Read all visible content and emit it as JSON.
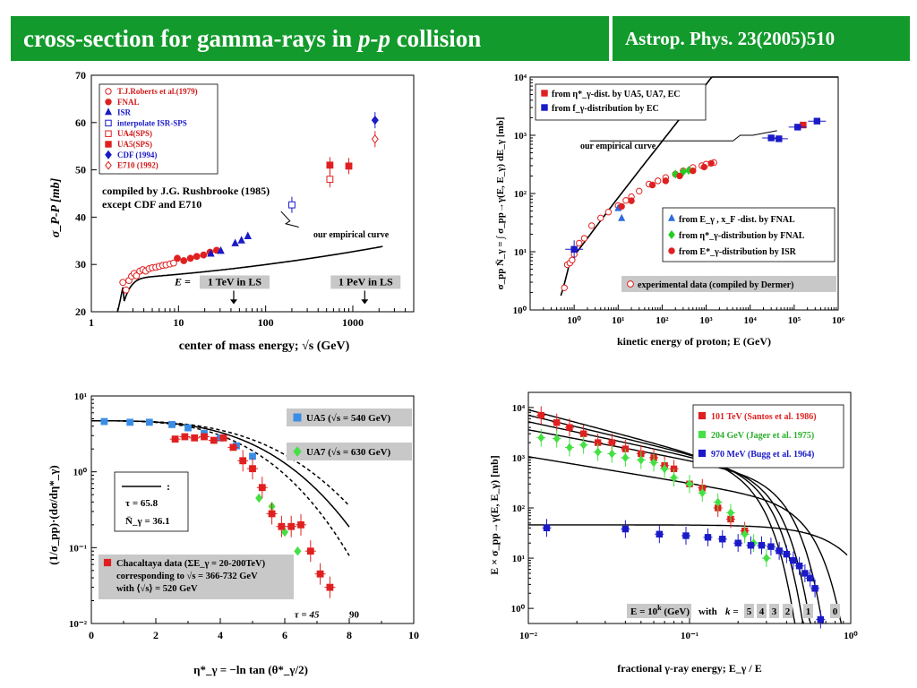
{
  "header": {
    "title_pre": "cross-section for gamma-rays in ",
    "title_em": "p-p",
    "title_post": " collision",
    "reference": "Astrop. Phys. 23(2005)510"
  },
  "chart_data": [
    {
      "type": "scatter",
      "id": "A",
      "xlabel": "center of mass energy;  √s (GeV)",
      "ylabel": "σ_P-P  [mb]",
      "xscale": "log",
      "xlim": [
        1,
        5000
      ],
      "ylim": [
        20,
        70
      ],
      "xticks": [
        "1",
        "10",
        "100",
        "1000"
      ],
      "yticks": [
        "20",
        "30",
        "40",
        "50",
        "60",
        "70"
      ],
      "legend": [
        "T.J.Roberts et al.(1979)",
        "FNAL",
        "ISR",
        "interpolate ISR-SPS",
        "UA4(SPS)",
        "UA5(SPS)",
        "CDF (1994)",
        "E710 (1992)"
      ],
      "note": [
        "compiled by J.G. Rushbrooke (1985)",
        "except CDF and E710"
      ],
      "curve_label": "our empirical curve",
      "arrow_labels": [
        {
          "pre": "E = ",
          "box": "1 TeV in LS",
          "x": 43
        },
        {
          "pre": "",
          "box": "1 PeV in LS",
          "x": 1370
        }
      ],
      "series": [
        {
          "name": "T.J.Roberts et al.(1979)",
          "color": "#e02020",
          "marker": "circle-open",
          "x": [
            2.3,
            2.5,
            2.7,
            2.9,
            3.1,
            3.3,
            3.6,
            3.9,
            4.2,
            4.6,
            5.0,
            5.5,
            6.0,
            6.6,
            7.2,
            8.0,
            8.8
          ],
          "y": [
            26.2,
            24.6,
            26.6,
            27.5,
            28.1,
            27.6,
            28.6,
            28.9,
            28.6,
            29.1,
            29.3,
            29.4,
            29.6,
            29.8,
            29.9,
            30.1,
            30.3
          ]
        },
        {
          "name": "FNAL",
          "color": "#e02020",
          "marker": "circle",
          "x": [
            9.7,
            11.5,
            13.7,
            16.2,
            19.4,
            23.0,
            27.4
          ],
          "y": [
            31.3,
            30.8,
            31.3,
            31.7,
            32.0,
            32.6,
            33.0
          ]
        },
        {
          "name": "ISR",
          "color": "#1a1ac8",
          "marker": "triangle",
          "x": [
            23.5,
            30.6,
            44.7,
            52.8,
            62.5
          ],
          "y": [
            32.2,
            32.8,
            34.4,
            35.0,
            35.9
          ]
        },
        {
          "name": "interpolate ISR-SPS",
          "color": "#1a1ac8",
          "marker": "square-open",
          "x": [
            200
          ],
          "y": [
            42.6
          ]
        },
        {
          "name": "UA4(SPS)",
          "color": "#e02020",
          "marker": "square-open",
          "x": [
            546
          ],
          "y": [
            48.0
          ]
        },
        {
          "name": "UA5(SPS)",
          "color": "#e02020",
          "marker": "square",
          "x": [
            546,
            900
          ],
          "y": [
            51.0,
            50.8
          ]
        },
        {
          "name": "CDF (1994)",
          "color": "#1a1ac8",
          "marker": "diamond",
          "x": [
            1800
          ],
          "y": [
            60.5
          ]
        },
        {
          "name": "E710 (1992)",
          "color": "#e02020",
          "marker": "diamond-open",
          "x": [
            1800
          ],
          "y": [
            56.5
          ]
        }
      ]
    },
    {
      "type": "scatter",
      "id": "B",
      "xlabel": "kinetic energy of proton;  E (GeV)",
      "ylabel": "σ_pp N̄_γ = ∫ σ_pp→γ(E, E_γ) dE_γ   [mb]",
      "xscale": "log",
      "yscale": "log",
      "xlim": [
        0.1,
        1000000
      ],
      "ylim": [
        1,
        10000
      ],
      "xticks": [
        "10⁰",
        "10¹",
        "10²",
        "10³",
        "10⁴",
        "10⁵",
        "10⁶"
      ],
      "yticks": [
        "10⁰",
        "10¹",
        "10²",
        "10³",
        "10⁴"
      ],
      "legend_top": [
        "from η*_γ-dist. by UA5, UA7, EC",
        "from f_γ-distribution by EC"
      ],
      "legend_bottom": [
        "from E_γ , x_F -dist. by FNAL",
        "from η*_γ-distribution by FNAL",
        "from E*_γ-distribution by ISR"
      ],
      "exp_label": "experimental data  (compiled by Dermer)",
      "curve_label": "our empirical curve",
      "series": [
        {
          "name": "experimental data",
          "color": "#e02020",
          "marker": "circle-open",
          "x": [
            0.6,
            0.7,
            0.8,
            0.9,
            1.0,
            1.3,
            1.7,
            2.5,
            4.0,
            6.0,
            10,
            15,
            20,
            30,
            50,
            80,
            120,
            200,
            300,
            500,
            800,
            1000,
            1500
          ],
          "y": [
            2.4,
            6.0,
            6.4,
            7.2,
            9.0,
            14,
            17,
            28,
            38,
            48,
            62,
            76,
            88,
            110,
            145,
            165,
            188,
            215,
            245,
            280,
            300,
            320,
            340
          ]
        },
        {
          "name": "from η*_γ-dist. by UA5, UA7, EC",
          "color": "#e02020",
          "marker": "square",
          "x": [
            160000
          ],
          "y": [
            1500
          ]
        },
        {
          "name": "from f_γ-distribution by EC",
          "color": "#1a1ac8",
          "marker": "square",
          "x": [
            1.0,
            30000,
            45000,
            120000,
            330000
          ],
          "y": [
            11,
            900,
            870,
            1380,
            1750
          ]
        },
        {
          "name": "from E_γ , x_F -dist. by FNAL",
          "color": "#2d6be0",
          "marker": "triangle",
          "x": [
            10,
            12
          ],
          "y": [
            55,
            37
          ]
        },
        {
          "name": "from η*_γ-distribution by FNAL",
          "color": "#22cc22",
          "marker": "diamond",
          "x": [
            200,
            300,
            400
          ],
          "y": [
            215,
            235,
            250
          ]
        },
        {
          "name": "from E*_γ-distribution by ISR",
          "color": "#e02020",
          "marker": "circle",
          "x": [
            12,
            20,
            60,
            120,
            250,
            500,
            900,
            1300
          ],
          "y": [
            60,
            75,
            140,
            165,
            200,
            245,
            285,
            330
          ]
        }
      ]
    },
    {
      "type": "line",
      "id": "C",
      "xlabel": "η*_γ = −ln tan (θ*_γ/2)",
      "ylabel": "(1/σ_pp)·(dσ/dη*_γ)",
      "yscale": "log",
      "xlim": [
        0,
        10
      ],
      "ylim": [
        0.01,
        10
      ],
      "xticks": [
        "0",
        "2",
        "4",
        "6",
        "8",
        "10"
      ],
      "yticks": [
        "10⁻²",
        "10⁻¹",
        "10⁰",
        "10¹"
      ],
      "legend": [
        {
          "label": "UA5 (√s = 540 GeV)",
          "color": "#3a8ee6"
        },
        {
          "label": "UA7 (√s = 630 GeV)",
          "color": "#44e044"
        }
      ],
      "params": [
        "τ = 65.8",
        "N̄_γ = 36.1"
      ],
      "chacaltaya": [
        "Chacaltaya data (ΣE_γ = 20-200TeV)",
        "corresponding to √s = 366-732 GeV",
        "with ⟨√s⟩ = 520 GeV"
      ],
      "tau_labels": [
        "τ = 45",
        "90"
      ],
      "series": [
        {
          "name": "UA5 (√s = 540 GeV)",
          "color": "#3a8ee6",
          "marker": "square",
          "x": [
            0.4,
            1.2,
            1.8,
            2.5,
            3.0,
            3.5,
            4.0,
            4.5,
            5.0
          ],
          "y": [
            4.6,
            4.5,
            4.5,
            4.2,
            3.8,
            3.2,
            2.8,
            2.2,
            1.6
          ]
        },
        {
          "name": "UA7 (√s = 630 GeV)",
          "color": "#44e044",
          "marker": "diamond",
          "x": [
            5.2,
            5.6,
            6.0,
            6.4
          ],
          "y": [
            0.45,
            0.35,
            0.16,
            0.09
          ]
        },
        {
          "name": "Chacaltaya data",
          "color": "#e02020",
          "marker": "square",
          "x": [
            2.6,
            2.9,
            3.2,
            3.5,
            3.8,
            4.1,
            4.4,
            4.7,
            5.0,
            5.3,
            5.6,
            5.9,
            6.2,
            6.5,
            6.8,
            7.1,
            7.4
          ],
          "y": [
            2.7,
            2.9,
            2.8,
            2.9,
            2.6,
            2.8,
            2.1,
            1.4,
            1.1,
            0.62,
            0.28,
            0.19,
            0.19,
            0.2,
            0.09,
            0.045,
            0.03
          ]
        }
      ]
    },
    {
      "type": "line",
      "id": "D",
      "xlabel": "fractional γ-ray energy;  E_γ / E",
      "ylabel": "E × σ_pp→γ(E, E_γ)   [mb]",
      "xscale": "log",
      "yscale": "log",
      "xlim": [
        0.01,
        1
      ],
      "ylim": [
        0.5,
        20000
      ],
      "xticks": [
        "10⁻²",
        "10⁻¹",
        "10⁰"
      ],
      "yticks": [
        "10⁰",
        "10¹",
        "10²",
        "10³",
        "10⁴"
      ],
      "legend": [
        {
          "label": "101 TeV (Santos et al. 1986)",
          "color": "#e02020"
        },
        {
          "label": "204 GeV (Jager et al. 1975)",
          "color": "#44e044"
        },
        {
          "label": "970 MeV (Bugg et al. 1964)",
          "color": "#1a1ac8"
        }
      ],
      "k_label": {
        "pre": "E = 10",
        "exp": "k",
        "post": " (GeV)",
        "with": "with",
        "k": "k ="
      },
      "k_values": [
        "5",
        "4",
        "3",
        "2",
        "1",
        "0"
      ],
      "series": [
        {
          "name": "101 TeV (Santos et al. 1986)",
          "color": "#e02020",
          "marker": "square",
          "x": [
            0.012,
            0.015,
            0.018,
            0.022,
            0.027,
            0.033,
            0.04,
            0.05,
            0.06,
            0.07,
            0.08,
            0.1,
            0.12,
            0.15,
            0.18,
            0.22
          ],
          "y": [
            7000,
            5000,
            4000,
            3000,
            2000,
            2000,
            1500,
            1200,
            1000,
            700,
            600,
            300,
            250,
            100,
            60,
            35
          ]
        },
        {
          "name": "204 GeV (Jager et al. 1975)",
          "color": "#44e044",
          "marker": "diamond",
          "x": [
            0.012,
            0.015,
            0.018,
            0.022,
            0.027,
            0.033,
            0.04,
            0.05,
            0.06,
            0.07,
            0.08,
            0.1,
            0.12,
            0.15,
            0.18,
            0.22,
            0.25,
            0.3
          ],
          "y": [
            2500,
            2400,
            1600,
            1800,
            1300,
            1200,
            1000,
            900,
            800,
            600,
            400,
            300,
            200,
            130,
            80,
            30,
            20,
            10
          ]
        },
        {
          "name": "970 MeV (Bugg et al. 1964)",
          "color": "#1a1ac8",
          "marker": "square",
          "x": [
            0.013,
            0.04,
            0.065,
            0.095,
            0.13,
            0.16,
            0.2,
            0.24,
            0.28,
            0.32,
            0.36,
            0.4,
            0.44,
            0.48,
            0.52,
            0.56,
            0.6,
            0.65
          ],
          "y": [
            40,
            38,
            30,
            28,
            26,
            24,
            20,
            18,
            18,
            17,
            14,
            12,
            9,
            7,
            5,
            4,
            2.5,
            0.6
          ]
        }
      ]
    }
  ]
}
